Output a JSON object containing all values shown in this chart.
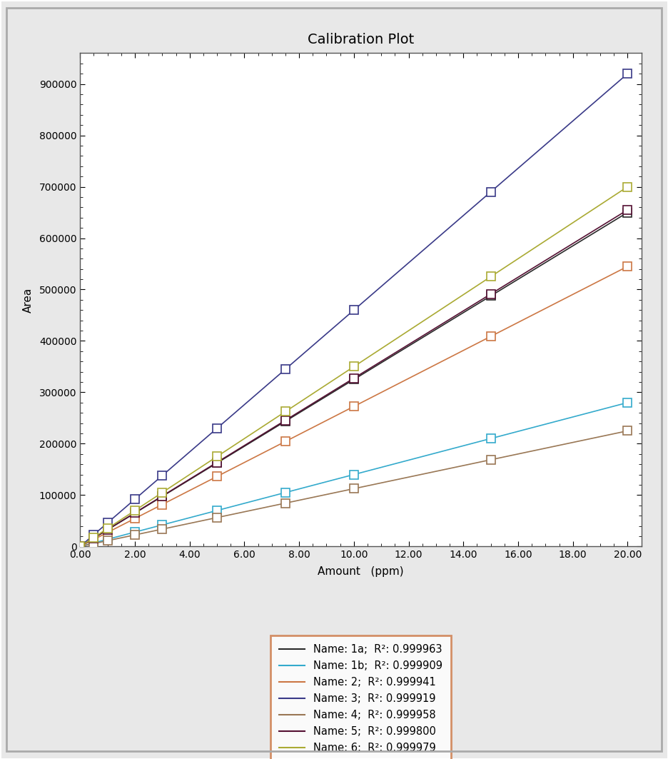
{
  "title": "Calibration Plot",
  "xlabel": "Amount   (ppm)",
  "ylabel": "Area",
  "background_color": "#f0f0f0",
  "plot_bg_color": "#ffffff",
  "outer_border_color": "#aaaaaa",
  "xlim": [
    0,
    20.5
  ],
  "ylim": [
    0,
    960000
  ],
  "xticks": [
    0.0,
    2.0,
    4.0,
    6.0,
    8.0,
    10.0,
    12.0,
    14.0,
    16.0,
    18.0,
    20.0
  ],
  "yticks": [
    0,
    100000,
    200000,
    300000,
    400000,
    500000,
    600000,
    700000,
    800000,
    900000
  ],
  "x_pts": [
    0,
    0.5,
    1.0,
    2.0,
    3.0,
    5.0,
    7.5,
    10.0,
    15.0,
    20.0
  ],
  "series": [
    {
      "name": "1a",
      "r2": "0.999963",
      "color": "#2a2a2a",
      "slope": 32500
    },
    {
      "name": "1b",
      "r2": "0.999909",
      "color": "#33aacc",
      "slope": 14000
    },
    {
      "name": "2",
      "r2": "0.999941",
      "color": "#cc7744",
      "slope": 27250
    },
    {
      "name": "3",
      "r2": "0.999919",
      "color": "#3a3a88",
      "slope": 46000
    },
    {
      "name": "4",
      "r2": "0.999958",
      "color": "#997755",
      "slope": 11250
    },
    {
      "name": "5",
      "r2": "0.999800",
      "color": "#551133",
      "slope": 32750
    },
    {
      "name": "6",
      "r2": "0.999979",
      "color": "#aaaa33",
      "slope": 35000
    }
  ],
  "legend_box_color": "#cc7744",
  "title_fontsize": 14,
  "axis_fontsize": 11,
  "tick_fontsize": 10,
  "legend_fontsize": 10.5,
  "marker_size": 8
}
